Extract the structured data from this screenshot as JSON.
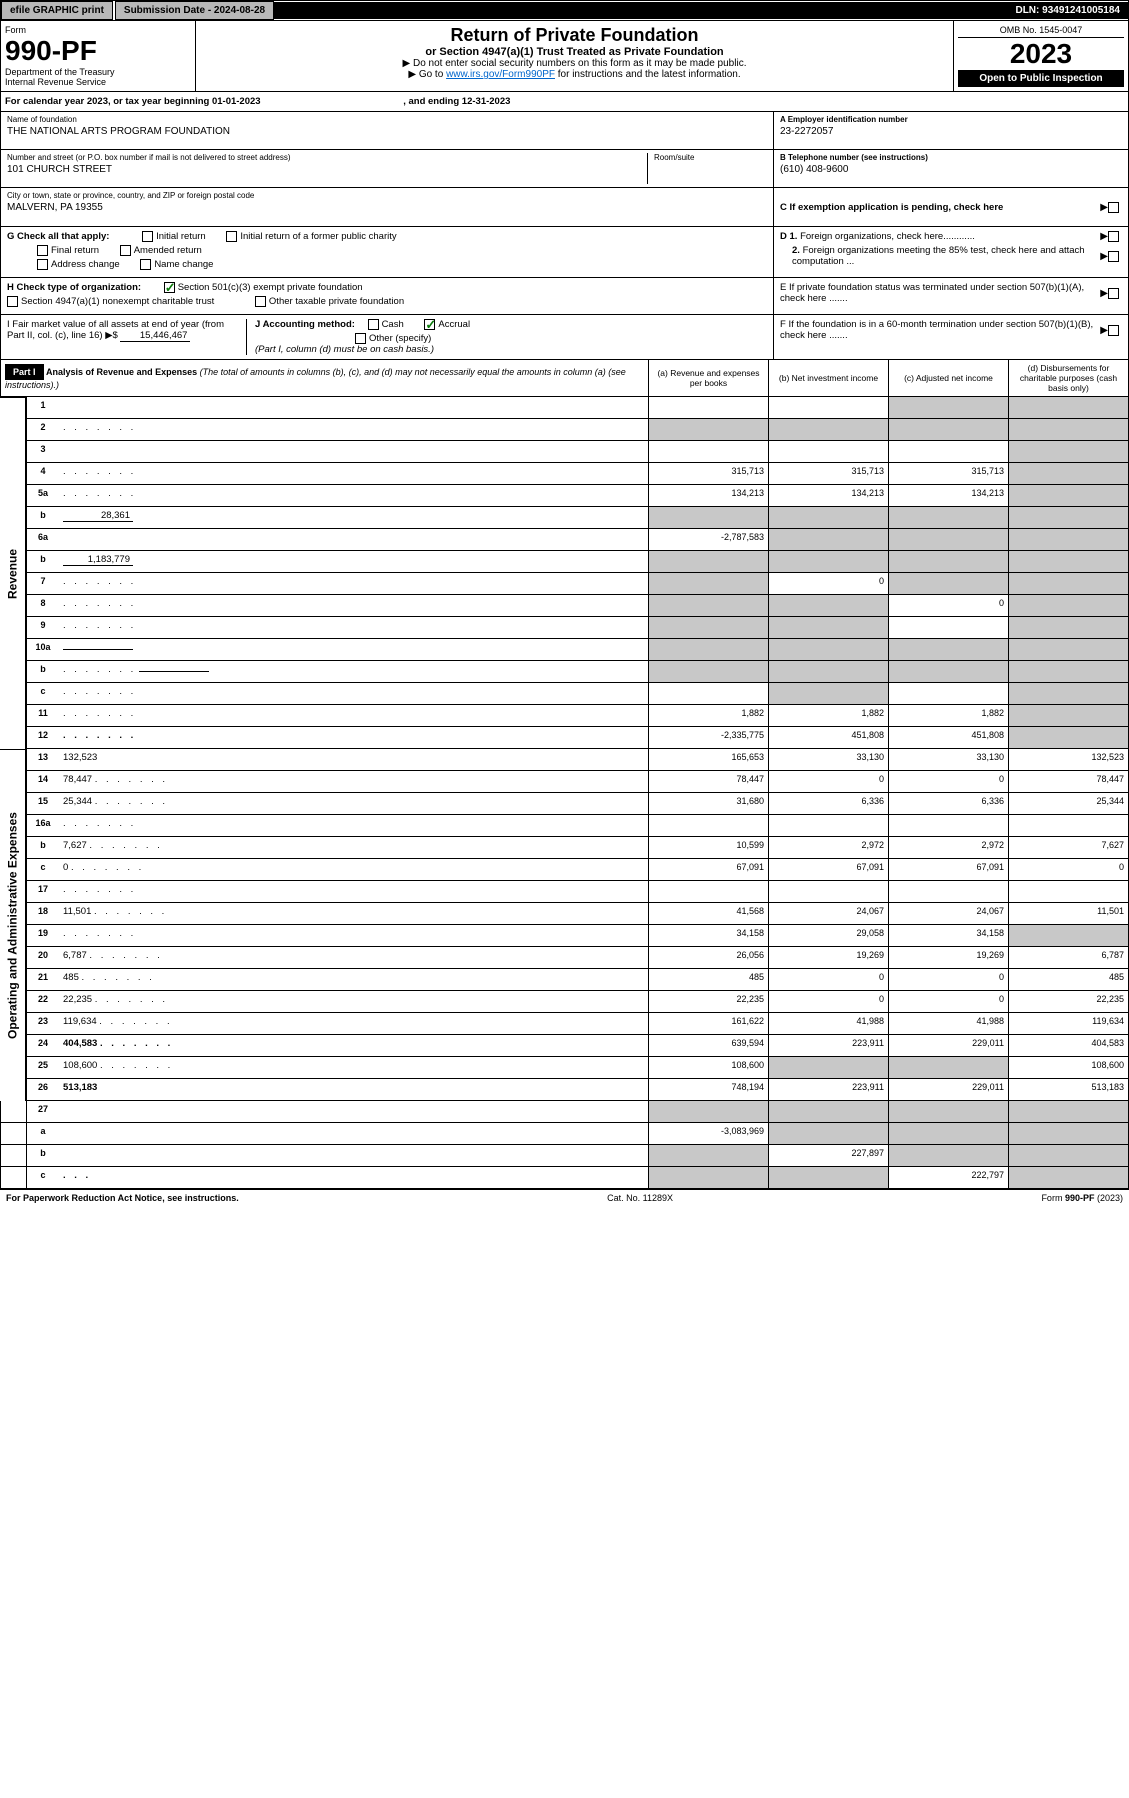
{
  "top": {
    "efile": "efile GRAPHIC print",
    "submission": "Submission Date - 2024-08-28",
    "dln": "DLN: 93491241005184"
  },
  "header": {
    "form_label": "Form",
    "form_num": "990-PF",
    "dept": "Department of the Treasury",
    "irs": "Internal Revenue Service",
    "title": "Return of Private Foundation",
    "subtitle": "or Section 4947(a)(1) Trust Treated as Private Foundation",
    "note1": "▶ Do not enter social security numbers on this form as it may be made public.",
    "note2": "▶ Go to ",
    "link": "www.irs.gov/Form990PF",
    "note2b": " for instructions and the latest information.",
    "omb": "OMB No. 1545-0047",
    "year": "2023",
    "open": "Open to Public Inspection"
  },
  "cal_year": {
    "text": "For calendar year 2023, or tax year beginning 01-01-2023",
    "ending": ", and ending 12-31-2023"
  },
  "info": {
    "name_label": "Name of foundation",
    "name": "THE NATIONAL ARTS PROGRAM FOUNDATION",
    "addr_label": "Number and street (or P.O. box number if mail is not delivered to street address)",
    "addr": "101 CHURCH STREET",
    "room_label": "Room/suite",
    "city_label": "City or town, state or province, country, and ZIP or foreign postal code",
    "city": "MALVERN, PA  19355",
    "ein_label": "A Employer identification number",
    "ein": "23-2272057",
    "phone_label": "B Telephone number (see instructions)",
    "phone": "(610) 408-9600",
    "c_label": "C If exemption application is pending, check here"
  },
  "checks": {
    "g_label": "G Check all that apply:",
    "g_items": [
      "Initial return",
      "Initial return of a former public charity",
      "Final return",
      "Amended return",
      "Address change",
      "Name change"
    ],
    "h_label": "H Check type of organization:",
    "h_501c3": "Section 501(c)(3) exempt private foundation",
    "h_4947": "Section 4947(a)(1) nonexempt charitable trust",
    "h_other": "Other taxable private foundation",
    "i_label": "I Fair market value of all assets at end of year (from Part II, col. (c), line 16) ▶$",
    "i_value": "15,446,467",
    "j_label": "J Accounting method:",
    "j_cash": "Cash",
    "j_accrual": "Accrual",
    "j_other": "Other (specify)",
    "j_note": "(Part I, column (d) must be on cash basis.)",
    "d1": "D 1. Foreign organizations, check here............",
    "d2": "2. Foreign organizations meeting the 85% test, check here and attach computation ...",
    "e": "E  If private foundation status was terminated under section 507(b)(1)(A), check here .......",
    "f": "F  If the foundation is in a 60-month termination under section 507(b)(1)(B), check here .......",
    "arrow": "▶"
  },
  "part1": {
    "label": "Part I",
    "title": "Analysis of Revenue and Expenses",
    "title_note": "(The total of amounts in columns (b), (c), and (d) may not necessarily equal the amounts in column (a) (see instructions).)",
    "col_a": "(a) Revenue and expenses per books",
    "col_b": "(b) Net investment income",
    "col_c": "(c) Adjusted net income",
    "col_d": "(d) Disbursements for charitable purposes (cash basis only)"
  },
  "sections": {
    "revenue": "Revenue",
    "expenses": "Operating and Administrative Expenses"
  },
  "rows": [
    {
      "n": "1",
      "d": "",
      "a": "",
      "b": "",
      "c": "",
      "shade_c": true,
      "shade_d": true
    },
    {
      "n": "2",
      "d": "",
      "a": "",
      "b": "",
      "c": "",
      "shade_a": true,
      "shade_b": true,
      "shade_c": true,
      "shade_d": true,
      "dots": true
    },
    {
      "n": "3",
      "d": "",
      "a": "",
      "b": "",
      "c": "",
      "shade_d": true
    },
    {
      "n": "4",
      "d": "",
      "a": "315,713",
      "b": "315,713",
      "c": "315,713",
      "shade_d": true,
      "dots": true
    },
    {
      "n": "5a",
      "d": "",
      "a": "134,213",
      "b": "134,213",
      "c": "134,213",
      "shade_d": true,
      "dots": true
    },
    {
      "n": "b",
      "d": "",
      "inline": "28,361",
      "a": "",
      "b": "",
      "c": "",
      "shade_a": true,
      "shade_b": true,
      "shade_c": true,
      "shade_d": true
    },
    {
      "n": "6a",
      "d": "",
      "a": "-2,787,583",
      "b": "",
      "c": "",
      "shade_b": true,
      "shade_c": true,
      "shade_d": true
    },
    {
      "n": "b",
      "d": "",
      "inline": "1,183,779",
      "a": "",
      "b": "",
      "c": "",
      "shade_a": true,
      "shade_b": true,
      "shade_c": true,
      "shade_d": true
    },
    {
      "n": "7",
      "d": "",
      "a": "",
      "b": "0",
      "c": "",
      "shade_a": true,
      "shade_c": true,
      "shade_d": true,
      "dots": true
    },
    {
      "n": "8",
      "d": "",
      "a": "",
      "b": "",
      "c": "0",
      "shade_a": true,
      "shade_b": true,
      "shade_d": true,
      "dots": true
    },
    {
      "n": "9",
      "d": "",
      "a": "",
      "b": "",
      "c": "",
      "shade_a": true,
      "shade_b": true,
      "shade_d": true,
      "dots": true
    },
    {
      "n": "10a",
      "d": "",
      "inline": "",
      "a": "",
      "b": "",
      "c": "",
      "shade_a": true,
      "shade_b": true,
      "shade_c": true,
      "shade_d": true
    },
    {
      "n": "b",
      "d": "",
      "inline": "",
      "a": "",
      "b": "",
      "c": "",
      "shade_a": true,
      "shade_b": true,
      "shade_c": true,
      "shade_d": true,
      "dots": true
    },
    {
      "n": "c",
      "d": "",
      "a": "",
      "b": "",
      "c": "",
      "shade_b": true,
      "shade_d": true,
      "dots": true
    },
    {
      "n": "11",
      "d": "",
      "a": "1,882",
      "b": "1,882",
      "c": "1,882",
      "shade_d": true,
      "dots": true
    },
    {
      "n": "12",
      "d": "",
      "a": "-2,335,775",
      "b": "451,808",
      "c": "451,808",
      "shade_d": true,
      "bold": true,
      "dots": true
    }
  ],
  "exp_rows": [
    {
      "n": "13",
      "d": "132,523",
      "a": "165,653",
      "b": "33,130",
      "c": "33,130"
    },
    {
      "n": "14",
      "d": "78,447",
      "a": "78,447",
      "b": "0",
      "c": "0",
      "dots": true
    },
    {
      "n": "15",
      "d": "25,344",
      "a": "31,680",
      "b": "6,336",
      "c": "6,336",
      "dots": true
    },
    {
      "n": "16a",
      "d": "",
      "a": "",
      "b": "",
      "c": "",
      "dots": true
    },
    {
      "n": "b",
      "d": "7,627",
      "a": "10,599",
      "b": "2,972",
      "c": "2,972",
      "dots": true
    },
    {
      "n": "c",
      "d": "0",
      "a": "67,091",
      "b": "67,091",
      "c": "67,091",
      "dots": true
    },
    {
      "n": "17",
      "d": "",
      "a": "",
      "b": "",
      "c": "",
      "dots": true
    },
    {
      "n": "18",
      "d": "11,501",
      "a": "41,568",
      "b": "24,067",
      "c": "24,067",
      "dots": true
    },
    {
      "n": "19",
      "d": "",
      "a": "34,158",
      "b": "29,058",
      "c": "34,158",
      "shade_d": true,
      "dots": true
    },
    {
      "n": "20",
      "d": "6,787",
      "a": "26,056",
      "b": "19,269",
      "c": "19,269",
      "dots": true
    },
    {
      "n": "21",
      "d": "485",
      "a": "485",
      "b": "0",
      "c": "0",
      "dots": true
    },
    {
      "n": "22",
      "d": "22,235",
      "a": "22,235",
      "b": "0",
      "c": "0",
      "dots": true
    },
    {
      "n": "23",
      "d": "119,634",
      "a": "161,622",
      "b": "41,988",
      "c": "41,988",
      "dots": true
    },
    {
      "n": "24",
      "d": "404,583",
      "a": "639,594",
      "b": "223,911",
      "c": "229,011",
      "bold": true,
      "dots": true
    },
    {
      "n": "25",
      "d": "108,600",
      "a": "108,600",
      "b": "",
      "c": "",
      "shade_b": true,
      "shade_c": true,
      "dots": true
    },
    {
      "n": "26",
      "d": "513,183",
      "a": "748,194",
      "b": "223,911",
      "c": "229,011",
      "bold": true
    }
  ],
  "bottom_rows": [
    {
      "n": "27",
      "d": "",
      "a": "",
      "b": "",
      "c": "",
      "shade_a": true,
      "shade_b": true,
      "shade_c": true,
      "shade_d": true
    },
    {
      "n": "a",
      "d": "",
      "a": "-3,083,969",
      "b": "",
      "c": "",
      "shade_b": true,
      "shade_c": true,
      "shade_d": true,
      "bold": true
    },
    {
      "n": "b",
      "d": "",
      "a": "",
      "b": "227,897",
      "c": "",
      "shade_a": true,
      "shade_c": true,
      "shade_d": true,
      "bold": true
    },
    {
      "n": "c",
      "d": "",
      "a": "",
      "b": "",
      "c": "222,797",
      "shade_a": true,
      "shade_b": true,
      "shade_d": true,
      "bold": true,
      "dots": true
    }
  ],
  "footer": {
    "left": "For Paperwork Reduction Act Notice, see instructions.",
    "center": "Cat. No. 11289X",
    "right": "Form 990-PF (2023)"
  }
}
